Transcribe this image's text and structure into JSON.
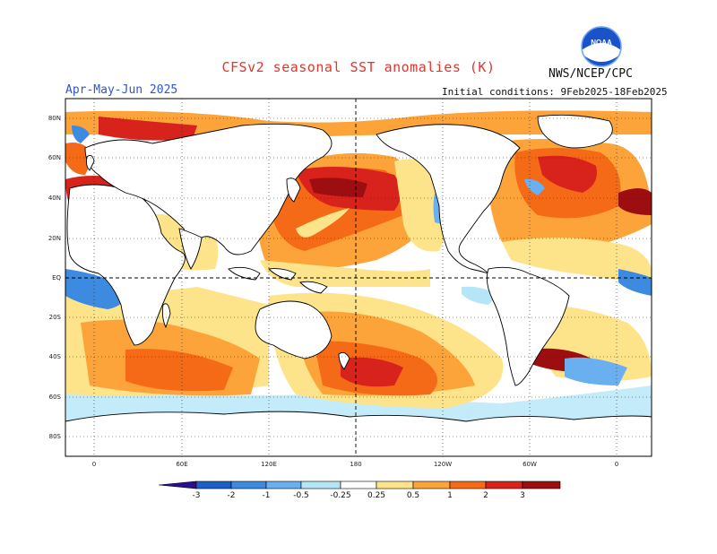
{
  "header": {
    "title": "CFSv2 seasonal SST anomalies (K)",
    "agency": "NWS/NCEP/CPC",
    "logo_text": "NOAA",
    "season": "Apr-May-Jun 2025",
    "initial_conditions": "Initial conditions: 9Feb2025-18Feb2025"
  },
  "map": {
    "lat_labels": [
      "80N",
      "60N",
      "40N",
      "20N",
      "EQ",
      "20S",
      "40S",
      "60S",
      "80S"
    ],
    "lon_labels": [
      "0",
      "60E",
      "120E",
      "180",
      "120W",
      "60W",
      "0"
    ]
  },
  "colorbar": {
    "ticks": [
      "-3",
      "-2",
      "-1",
      "-0.5",
      "-0.25",
      "0.25",
      "0.5",
      "1",
      "2",
      "3"
    ],
    "colors": [
      "#2a0f8f",
      "#1c5fc9",
      "#3c8be0",
      "#6ab0f0",
      "#b4e6f7",
      "#ffffff",
      "#fde48a",
      "#fca43a",
      "#f56a16",
      "#d8231d",
      "#9c0e10",
      "#8a4b44"
    ]
  },
  "colors": {
    "land": "#ffffff",
    "coast": "#000000",
    "warm_light": "#fde48a",
    "warm_mid": "#fca43a",
    "warm_orange": "#f56a16",
    "warm_red": "#d8231d",
    "warm_dark": "#9c0e10",
    "cool_light": "#b4e6f7",
    "cool_mid": "#6ab0f0",
    "cool_dark": "#3c8be0"
  }
}
